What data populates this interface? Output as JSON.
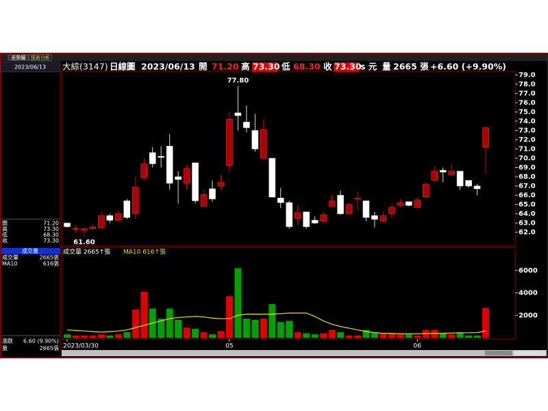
{
  "tabs": [
    "走勢圖",
    "技術分析"
  ],
  "side_date": "2023/06/13",
  "side_quote": [
    [
      "開",
      "71.20"
    ],
    [
      "高",
      "73.30"
    ],
    [
      "低",
      "68.30"
    ],
    [
      "收",
      "73.30"
    ]
  ],
  "side_volume_title": "成交量",
  "side_volume": [
    [
      "成交量",
      "2665張"
    ],
    [
      "MA10",
      "616張"
    ]
  ],
  "side_change": [
    [
      "漲跌",
      "6.60 (9.90%)"
    ],
    [
      "量",
      "2665張"
    ]
  ],
  "header": {
    "name": "大綜(3147)",
    "period": "日線圖",
    "date": "2023/06/13",
    "open_label": "開",
    "open": "71.20",
    "high_label": "高",
    "high": "73.30",
    "low_label": "低",
    "low": "68.30",
    "close_label": "收",
    "close": "73.30",
    "unit": "s 元",
    "volume_label": "量",
    "volume": "2665 張",
    "change": "+6.60 (+9.90%)"
  },
  "chart_data": [
    {
      "type": "candlestick",
      "categories": [
        "2023/03/30",
        null,
        null,
        null,
        null,
        null,
        null,
        null,
        null,
        null,
        null,
        null,
        null,
        null,
        null,
        null,
        null,
        null,
        null,
        "05",
        null,
        null,
        null,
        null,
        null,
        null,
        null,
        null,
        null,
        null,
        null,
        null,
        null,
        null,
        null,
        null,
        null,
        null,
        null,
        null,
        null,
        "06",
        null,
        null,
        null,
        null,
        null,
        null,
        null,
        null
      ],
      "open": [
        63.0,
        62.4,
        62.2,
        62.4,
        62.5,
        63.8,
        63.3,
        65.4,
        64.0,
        67.9,
        70.6,
        70.2,
        71.3,
        68.0,
        67.3,
        69.5,
        64.8,
        66.7,
        67.0,
        69.2,
        74.9,
        73.9,
        73.0,
        70.0,
        70.0,
        65.7,
        65.2,
        63.5,
        64.2,
        63.3,
        63.2,
        64.8,
        66.0,
        64.0,
        65.6,
        65.4,
        63.8,
        63.2,
        64.0,
        64.9,
        65.3,
        64.7,
        65.8,
        67.6,
        68.7,
        68.2,
        68.6,
        67.6,
        67.0,
        71.2
      ],
      "high": [
        63.0,
        62.7,
        62.5,
        62.9,
        64.2,
        64.0,
        64.3,
        65.6,
        68.0,
        70.0,
        71.2,
        71.3,
        72.6,
        68.6,
        69.3,
        69.5,
        66.6,
        67.6,
        68.2,
        75.0,
        77.8,
        75.7,
        74.8,
        74.2,
        70.0,
        66.8,
        65.4,
        64.9,
        64.2,
        63.7,
        64.2,
        66.0,
        66.5,
        65.2,
        66.4,
        65.4,
        64.2,
        64.3,
        65.1,
        65.6,
        65.3,
        65.8,
        67.4,
        69.1,
        69.0,
        69.4,
        68.6,
        67.6,
        67.2,
        73.3
      ],
      "low": [
        62.5,
        62.0,
        61.6,
        62.2,
        62.4,
        63.0,
        63.2,
        63.4,
        63.4,
        67.6,
        69.0,
        69.0,
        66.6,
        65.1,
        66.6,
        65.1,
        64.8,
        65.3,
        66.6,
        68.5,
        73.0,
        72.8,
        70.7,
        69.8,
        65.8,
        64.6,
        62.4,
        62.8,
        62.4,
        62.9,
        63.0,
        64.7,
        63.9,
        64.0,
        64.4,
        63.2,
        62.5,
        63.0,
        63.6,
        64.7,
        64.8,
        64.6,
        65.7,
        67.5,
        67.4,
        68.1,
        66.6,
        66.8,
        66.0,
        68.3
      ],
      "close": [
        62.6,
        62.4,
        62.4,
        62.6,
        63.8,
        63.3,
        64.0,
        63.6,
        66.9,
        69.4,
        69.4,
        70.1,
        67.3,
        67.7,
        68.9,
        65.4,
        66.1,
        65.6,
        67.4,
        74.2,
        74.6,
        73.3,
        71.0,
        73.1,
        65.8,
        65.2,
        62.6,
        64.1,
        62.6,
        63.0,
        63.9,
        65.4,
        64.0,
        65.0,
        65.7,
        63.6,
        63.4,
        63.8,
        64.7,
        65.2,
        64.9,
        65.5,
        67.2,
        68.6,
        68.5,
        68.6,
        67.0,
        67.0,
        66.7,
        73.3
      ],
      "up_color": "#b00000",
      "down_color": "#ffffff",
      "annotations": [
        {
          "label": "77.80",
          "value": 77.8
        },
        {
          "label": "61.60",
          "value": 61.6
        }
      ],
      "ylim": [
        60.6,
        79.4
      ],
      "yticks": [
        {
          "value": 62,
          "label": "62.0"
        },
        {
          "value": 63,
          "label": "63.0"
        },
        {
          "value": 64,
          "label": "64.0"
        },
        {
          "value": 65,
          "label": "65.0"
        },
        {
          "value": 66,
          "label": "66.0"
        },
        {
          "value": 67,
          "label": "67.0"
        },
        {
          "value": 68,
          "label": "68.0"
        },
        {
          "value": 69,
          "label": "69.0"
        },
        {
          "value": 70,
          "label": "70.0"
        },
        {
          "value": 71,
          "label": "71.0"
        },
        {
          "value": 72,
          "label": "72.0"
        },
        {
          "value": 73,
          "label": "73.0"
        },
        {
          "value": 74,
          "label": "74.0"
        },
        {
          "value": 75,
          "label": "75.0"
        },
        {
          "value": 76,
          "label": "76.0"
        },
        {
          "value": 77,
          "label": "77.0"
        },
        {
          "value": 78,
          "label": "78.0"
        },
        {
          "value": 79,
          "label": "79.0"
        }
      ]
    },
    {
      "type": "bar",
      "title": "成交量 2665↑張",
      "ma_title": "MA10 616↑張",
      "series": [
        {
          "name": "成交量",
          "up_color": "#e00000",
          "down_color": "#00a000",
          "values": [
            300,
            200,
            200,
            200,
            300,
            200,
            300,
            500,
            2500,
            4100,
            2600,
            1700,
            2600,
            1600,
            900,
            800,
            500,
            300,
            600,
            3700,
            6200,
            1700,
            1600,
            1700,
            3000,
            1400,
            1500,
            500,
            400,
            300,
            400,
            700,
            500,
            200,
            200,
            700,
            500,
            400,
            400,
            300,
            300,
            200,
            700,
            700,
            400,
            300,
            500,
            200,
            200,
            2665
          ]
        },
        {
          "name": "MA10",
          "color": "#e8e000",
          "values": [
            700,
            650,
            600,
            550,
            500,
            550,
            600,
            700,
            900,
            1100,
            1300,
            1500,
            1700,
            1800,
            1850,
            1900,
            1850,
            1750,
            1700,
            1700,
            2000,
            2100,
            2100,
            2100,
            2100,
            2150,
            2200,
            2200,
            2200,
            1900,
            1500,
            1200,
            1000,
            850,
            700,
            550,
            450,
            400,
            380,
            360,
            350,
            350,
            370,
            380,
            400,
            420,
            430,
            440,
            450,
            616
          ]
        }
      ],
      "ylim": [
        0,
        8000
      ],
      "yticks": [
        2000,
        4000,
        6000
      ]
    }
  ]
}
